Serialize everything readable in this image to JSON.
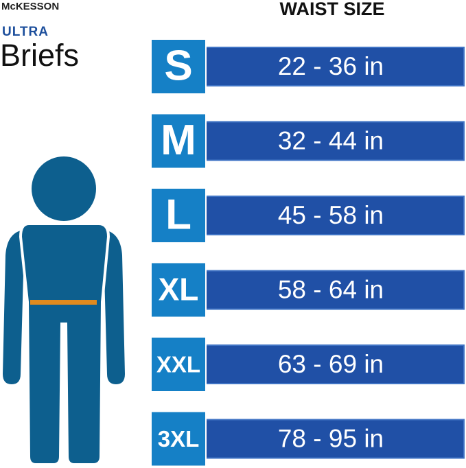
{
  "brand": "McKESSON",
  "product": {
    "line": "ULTRA",
    "name": "Briefs"
  },
  "heading": "WAIST SIZE",
  "sizes": [
    {
      "size": "S",
      "range": "22 - 36 in"
    },
    {
      "size": "M",
      "range": "32 - 44 in"
    },
    {
      "size": "L",
      "range": "45 - 58 in"
    },
    {
      "size": "XL",
      "range": "58 - 64 in"
    },
    {
      "size": "XXL",
      "range": "63 - 69 in"
    },
    {
      "size": "3XL",
      "range": "78 - 95 in"
    }
  ]
}
